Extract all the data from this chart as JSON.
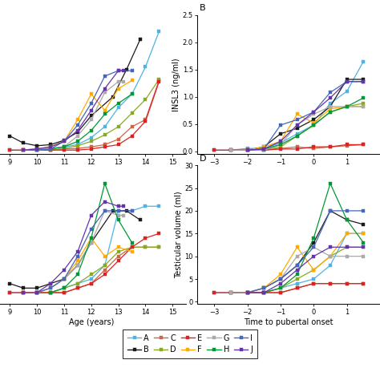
{
  "subjects": [
    "A",
    "B",
    "C",
    "D",
    "E",
    "F",
    "G",
    "H",
    "I",
    "J"
  ],
  "colors": {
    "A": "#4db3e6",
    "B": "#1a1a1a",
    "C": "#cc6644",
    "D": "#88aa22",
    "E": "#dd2222",
    "F": "#ffaa00",
    "G": "#aaaaaa",
    "H": "#009933",
    "I": "#4466bb",
    "J": "#6633aa"
  },
  "INSL3_age": {
    "A": {
      "x": [
        9.0,
        9.5,
        10.0,
        10.5,
        11.0,
        11.5,
        12.0,
        12.5,
        13.0,
        13.5,
        14.0,
        14.5
      ],
      "y": [
        0.02,
        0.02,
        0.05,
        0.05,
        0.08,
        0.12,
        0.25,
        0.45,
        0.8,
        1.05,
        1.55,
        2.2
      ]
    },
    "B": {
      "x": [
        9.0,
        9.5,
        10.0,
        10.5,
        11.0,
        11.5,
        12.0,
        12.8,
        13.3,
        13.8
      ],
      "y": [
        0.28,
        0.15,
        0.1,
        0.12,
        0.2,
        0.35,
        0.65,
        1.0,
        1.5,
        2.05
      ]
    },
    "C": {
      "x": [
        9.5,
        10.0,
        10.5,
        11.0,
        11.5,
        12.0,
        12.5,
        13.0,
        13.5,
        14.0,
        14.5
      ],
      "y": [
        0.02,
        0.02,
        0.02,
        0.04,
        0.05,
        0.08,
        0.12,
        0.22,
        0.45,
        0.58,
        1.3
      ]
    },
    "D": {
      "x": [
        10.0,
        10.5,
        11.0,
        11.5,
        12.0,
        12.5,
        13.0,
        13.5,
        14.0,
        14.5
      ],
      "y": [
        0.02,
        0.02,
        0.05,
        0.1,
        0.18,
        0.3,
        0.45,
        0.7,
        0.95,
        1.32
      ]
    },
    "E": {
      "x": [
        9.0,
        9.5,
        10.0,
        10.5,
        11.0,
        11.5,
        12.0,
        12.5,
        13.0,
        13.5,
        14.0,
        14.5
      ],
      "y": [
        0.02,
        0.02,
        0.02,
        0.02,
        0.02,
        0.02,
        0.04,
        0.08,
        0.12,
        0.28,
        0.55,
        1.28
      ]
    },
    "F": {
      "x": [
        9.5,
        10.0,
        10.5,
        11.0,
        11.5,
        12.0,
        12.5,
        13.0,
        13.5
      ],
      "y": [
        0.02,
        0.04,
        0.08,
        0.18,
        0.58,
        1.05,
        0.75,
        1.15,
        1.3
      ]
    },
    "G": {
      "x": [
        10.0,
        10.5,
        11.0,
        11.5,
        12.0,
        12.5,
        13.0,
        13.2
      ],
      "y": [
        0.02,
        0.04,
        0.08,
        0.28,
        0.58,
        1.08,
        1.28,
        1.28
      ]
    },
    "H": {
      "x": [
        10.5,
        11.0,
        11.5,
        12.0,
        12.5,
        13.0,
        13.5
      ],
      "y": [
        0.04,
        0.08,
        0.18,
        0.38,
        0.68,
        0.88,
        1.05
      ]
    },
    "I": {
      "x": [
        10.0,
        10.5,
        11.0,
        11.5,
        12.0,
        12.5,
        13.0,
        13.5
      ],
      "y": [
        0.02,
        0.04,
        0.18,
        0.48,
        0.88,
        1.38,
        1.48,
        1.48
      ]
    },
    "J": {
      "x": [
        9.5,
        10.0,
        10.5,
        11.0,
        11.5,
        12.0,
        12.5,
        13.0,
        13.2
      ],
      "y": [
        0.02,
        0.04,
        0.08,
        0.18,
        0.38,
        0.75,
        1.15,
        1.48,
        1.48
      ]
    }
  },
  "INSL3_time": {
    "A": {
      "x": [
        -3.0,
        -2.5,
        -2.0,
        -1.5,
        -1.0,
        -0.5,
        0.0,
        0.5,
        1.0,
        1.5
      ],
      "y": [
        0.02,
        0.02,
        0.05,
        0.05,
        0.15,
        0.32,
        0.48,
        0.88,
        1.1,
        1.65
      ]
    },
    "B": {
      "x": [
        -2.5,
        -2.0,
        -1.5,
        -1.0,
        -0.5,
        0.0,
        0.5,
        1.0,
        1.5
      ],
      "y": [
        0.02,
        0.02,
        0.08,
        0.32,
        0.42,
        0.58,
        0.82,
        1.32,
        1.32
      ]
    },
    "C": {
      "x": [
        -2.0,
        -1.5,
        -1.0,
        -0.5,
        0.0,
        0.5,
        1.0,
        1.5
      ],
      "y": [
        0.02,
        0.02,
        0.05,
        0.08,
        0.05,
        0.08,
        0.1,
        0.12
      ]
    },
    "D": {
      "x": [
        -1.5,
        -1.0,
        -0.5,
        0.0,
        0.5,
        1.0,
        1.5
      ],
      "y": [
        0.02,
        0.08,
        0.28,
        0.48,
        0.72,
        0.82,
        0.88
      ]
    },
    "E": {
      "x": [
        -3.0,
        -2.5,
        -2.0,
        -1.5,
        -1.0,
        -0.5,
        0.0,
        0.5,
        1.0,
        1.5
      ],
      "y": [
        0.02,
        0.02,
        0.02,
        0.02,
        0.04,
        0.04,
        0.08,
        0.08,
        0.12,
        0.12
      ]
    },
    "F": {
      "x": [
        -2.0,
        -1.5,
        -1.0,
        -0.5,
        0.0,
        0.5,
        1.0,
        1.5
      ],
      "y": [
        0.02,
        0.08,
        0.18,
        0.68,
        0.52,
        0.78,
        0.82,
        0.82
      ]
    },
    "G": {
      "x": [
        -2.5,
        -2.0,
        -1.5,
        -1.0,
        -0.5,
        0.0,
        0.5,
        1.0,
        1.5
      ],
      "y": [
        0.02,
        0.02,
        0.02,
        0.12,
        0.48,
        0.68,
        0.82,
        0.82,
        0.82
      ]
    },
    "H": {
      "x": [
        -1.5,
        -1.0,
        -0.5,
        0.0,
        0.5,
        1.0,
        1.5
      ],
      "y": [
        0.04,
        0.12,
        0.28,
        0.48,
        0.72,
        0.82,
        0.98
      ]
    },
    "I": {
      "x": [
        -2.0,
        -1.5,
        -1.0,
        -0.5,
        0.0,
        0.5,
        1.0,
        1.5
      ],
      "y": [
        0.02,
        0.04,
        0.48,
        0.58,
        0.72,
        1.08,
        1.28,
        1.28
      ]
    },
    "J": {
      "x": [
        -2.0,
        -1.5,
        -1.0,
        -0.5,
        0.0,
        0.5,
        1.0,
        1.5
      ],
      "y": [
        0.02,
        0.04,
        0.18,
        0.48,
        0.72,
        0.98,
        1.28,
        1.28
      ]
    }
  },
  "TV_age": {
    "A": {
      "x": [
        9.0,
        9.5,
        10.0,
        10.5,
        11.0,
        11.5,
        12.0,
        12.5,
        13.0,
        13.5,
        14.0,
        14.5
      ],
      "y": [
        2,
        2,
        2,
        2,
        3,
        4,
        5,
        8,
        20,
        20,
        21,
        21
      ]
    },
    "B": {
      "x": [
        9.0,
        9.5,
        10.0,
        10.5,
        11.0,
        11.5,
        12.0,
        12.8,
        13.3,
        13.8
      ],
      "y": [
        4,
        3,
        3,
        4,
        5,
        8,
        13,
        20,
        20,
        18
      ]
    },
    "C": {
      "x": [
        9.5,
        10.0,
        10.5,
        11.0,
        11.5,
        12.0,
        12.5,
        13.0,
        13.5,
        14.0,
        14.5
      ],
      "y": [
        2,
        2,
        2,
        2,
        3,
        4,
        7,
        10,
        12,
        12,
        12
      ]
    },
    "D": {
      "x": [
        10.0,
        10.5,
        11.0,
        11.5,
        12.0,
        12.5,
        13.0,
        13.5,
        14.0,
        14.5
      ],
      "y": [
        2,
        2,
        3,
        4,
        6,
        8,
        11,
        12,
        12,
        12
      ]
    },
    "E": {
      "x": [
        9.0,
        9.5,
        10.0,
        10.5,
        11.0,
        11.5,
        12.0,
        12.5,
        13.0,
        13.5,
        14.0,
        14.5
      ],
      "y": [
        2,
        2,
        2,
        2,
        2,
        3,
        4,
        6,
        9,
        12,
        14,
        15
      ]
    },
    "F": {
      "x": [
        9.5,
        10.0,
        10.5,
        11.0,
        11.5,
        12.0,
        12.5,
        13.0,
        13.5
      ],
      "y": [
        2,
        2,
        3,
        5,
        9,
        14,
        10,
        12,
        11
      ]
    },
    "G": {
      "x": [
        10.0,
        10.5,
        11.0,
        11.5,
        12.0,
        12.5,
        13.0,
        13.2
      ],
      "y": [
        2,
        3,
        5,
        8,
        13,
        20,
        19,
        19
      ]
    },
    "H": {
      "x": [
        10.5,
        11.0,
        11.5,
        12.0,
        12.5,
        13.0,
        13.5
      ],
      "y": [
        2,
        3,
        6,
        14,
        26,
        18,
        13
      ]
    },
    "I": {
      "x": [
        10.0,
        10.5,
        11.0,
        11.5,
        12.0,
        12.5,
        13.0,
        13.5
      ],
      "y": [
        2,
        3,
        5,
        10,
        16,
        20,
        20,
        20
      ]
    },
    "J": {
      "x": [
        9.5,
        10.0,
        10.5,
        11.0,
        11.5,
        12.0,
        12.5,
        13.0,
        13.2
      ],
      "y": [
        2,
        2,
        4,
        7,
        11,
        19,
        22,
        21,
        21
      ]
    }
  },
  "TV_time": {
    "A": {
      "x": [
        -3.0,
        -2.5,
        -2.0,
        -1.5,
        -1.0,
        -0.5,
        0.0,
        0.5,
        1.0,
        1.5
      ],
      "y": [
        2,
        2,
        2,
        2,
        3,
        4,
        5,
        8,
        15,
        15
      ]
    },
    "B": {
      "x": [
        -2.5,
        -2.0,
        -1.5,
        -1.0,
        -0.5,
        0.0,
        0.5,
        1.0,
        1.5
      ],
      "y": [
        2,
        2,
        3,
        5,
        8,
        13,
        20,
        18,
        17
      ]
    },
    "C": {
      "x": [
        -2.0,
        -1.5,
        -1.0,
        -0.5,
        0.0,
        0.5,
        1.0,
        1.5
      ],
      "y": [
        2,
        2,
        2,
        3,
        4,
        4,
        4,
        4
      ]
    },
    "D": {
      "x": [
        -1.5,
        -1.0,
        -0.5,
        0.0,
        0.5,
        1.0,
        1.5
      ],
      "y": [
        2,
        3,
        5,
        7,
        10,
        12,
        12
      ]
    },
    "E": {
      "x": [
        -3.0,
        -2.5,
        -2.0,
        -1.5,
        -1.0,
        -0.5,
        0.0,
        0.5,
        1.0,
        1.5
      ],
      "y": [
        2,
        2,
        2,
        2,
        2,
        3,
        4,
        4,
        4,
        4
      ]
    },
    "F": {
      "x": [
        -2.0,
        -1.5,
        -1.0,
        -0.5,
        0.0,
        0.5,
        1.0,
        1.5
      ],
      "y": [
        2,
        3,
        6,
        12,
        7,
        10,
        15,
        15
      ]
    },
    "G": {
      "x": [
        -2.5,
        -2.0,
        -1.5,
        -1.0,
        -0.5,
        0.0,
        0.5,
        1.0,
        1.5
      ],
      "y": [
        2,
        2,
        3,
        5,
        10,
        12,
        10,
        10,
        10
      ]
    },
    "H": {
      "x": [
        -1.5,
        -1.0,
        -0.5,
        0.0,
        0.5,
        1.0,
        1.5
      ],
      "y": [
        2,
        3,
        6,
        14,
        26,
        18,
        13
      ]
    },
    "I": {
      "x": [
        -2.0,
        -1.5,
        -1.0,
        -0.5,
        0.0,
        0.5,
        1.0,
        1.5
      ],
      "y": [
        2,
        3,
        5,
        8,
        12,
        20,
        20,
        20
      ]
    },
    "J": {
      "x": [
        -2.0,
        -1.5,
        -1.0,
        -0.5,
        0.0,
        0.5,
        1.0,
        1.5
      ],
      "y": [
        2,
        2,
        4,
        7,
        10,
        12,
        12,
        12
      ]
    }
  },
  "xlabel_age": "Age (years)",
  "xlabel_time": "Time to pubertal onset",
  "ylabel_INSL3": "INSL3 (ng/ml)",
  "ylabel_TV": "Testicular volume (ml)",
  "xlim_age": [
    8.5,
    15.5
  ],
  "xlim_time": [
    -3.5,
    2.0
  ],
  "ylim_INSL3": [
    -0.05,
    2.5
  ],
  "ylim_TV": [
    -0.5,
    30
  ],
  "xticks_age": [
    9,
    10,
    11,
    12,
    13,
    14,
    15
  ],
  "xticks_time": [
    -3,
    -2,
    -1,
    0,
    1
  ],
  "yticks_INSL3": [
    0.0,
    0.5,
    1.0,
    1.5,
    2.0,
    2.5
  ],
  "yticks_TV": [
    0,
    5,
    10,
    15,
    20,
    25,
    30
  ],
  "legend_row1": [
    "A",
    "B",
    "C",
    "D",
    "E"
  ],
  "legend_row2": [
    "F",
    "G",
    "H",
    "I",
    "J"
  ]
}
